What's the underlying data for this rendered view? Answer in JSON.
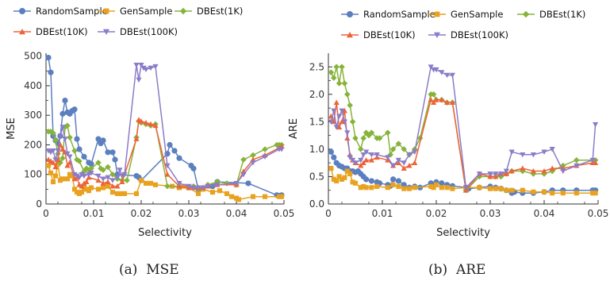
{
  "series_styles": [
    {
      "name": "RandomSample",
      "color": "#5b7fbf",
      "marker": "circle"
    },
    {
      "name": "GenSample",
      "color": "#e8a21f",
      "marker": "square"
    },
    {
      "name": "DBEst(1K)",
      "color": "#86b33a",
      "marker": "diamond"
    },
    {
      "name": "DBEst(10K)",
      "color": "#ec6439",
      "marker": "triangle-up"
    },
    {
      "name": "DBEst(100K)",
      "color": "#8b7cc8",
      "marker": "triangle-down"
    }
  ],
  "chart_data": [
    {
      "type": "line",
      "caption": "(a)  MSE",
      "xlabel": "Selectivity",
      "ylabel": "MSE",
      "xlim": [
        0,
        0.05
      ],
      "ylim": [
        0,
        510
      ],
      "xticks": [
        "0.00",
        "0.01",
        "0.02",
        "0.03",
        "0.04",
        "0.05"
      ],
      "xtick_values": [
        0,
        0.01,
        0.02,
        0.03,
        0.04,
        0.05
      ],
      "yticks": [
        "0",
        "100",
        "200",
        "300",
        "400",
        "500"
      ],
      "ytick_values": [
        0,
        100,
        200,
        300,
        400,
        500
      ],
      "legend_position": "top",
      "series": [
        {
          "name": "RandomSample",
          "x": [
            0.0005,
            0.001,
            0.0015,
            0.002,
            0.0025,
            0.003,
            0.0035,
            0.004,
            0.0045,
            0.005,
            0.0055,
            0.006,
            0.0065,
            0.007,
            0.008,
            0.009,
            0.0095,
            0.011,
            0.0115,
            0.012,
            0.013,
            0.014,
            0.0145,
            0.015,
            0.019,
            0.0195,
            0.02,
            0.0255,
            0.026,
            0.027,
            0.028,
            0.0305,
            0.031,
            0.032,
            0.035,
            0.036,
            0.0425,
            0.0485,
            0.049,
            0.0495
          ],
          "y": [
            495,
            445,
            230,
            215,
            205,
            230,
            305,
            350,
            310,
            305,
            315,
            320,
            220,
            185,
            160,
            140,
            135,
            220,
            205,
            215,
            175,
            175,
            150,
            100,
            95,
            90,
            80,
            170,
            200,
            180,
            155,
            130,
            120,
            50,
            60,
            75,
            70,
            30,
            28,
            30
          ]
        },
        {
          "name": "GenSample",
          "x": [
            0.0005,
            0.001,
            0.0015,
            0.002,
            0.0025,
            0.003,
            0.0035,
            0.0045,
            0.005,
            0.0055,
            0.006,
            0.0065,
            0.007,
            0.0075,
            0.008,
            0.0085,
            0.009,
            0.0095,
            0.011,
            0.012,
            0.013,
            0.014,
            0.015,
            0.016,
            0.0165,
            0.019,
            0.02,
            0.021,
            0.022,
            0.023,
            0.0265,
            0.028,
            0.029,
            0.03,
            0.032,
            0.033,
            0.035,
            0.0365,
            0.038,
            0.039,
            0.04,
            0.0405,
            0.0435,
            0.046,
            0.049,
            0.0495
          ],
          "y": [
            130,
            105,
            75,
            95,
            135,
            80,
            85,
            85,
            100,
            95,
            50,
            40,
            35,
            40,
            55,
            50,
            45,
            55,
            50,
            55,
            60,
            40,
            35,
            35,
            35,
            35,
            80,
            70,
            70,
            65,
            60,
            55,
            60,
            55,
            35,
            50,
            40,
            45,
            35,
            25,
            20,
            15,
            25,
            25,
            25,
            25
          ]
        },
        {
          "name": "DBEst(1K)",
          "x": [
            0.0005,
            0.001,
            0.0015,
            0.002,
            0.0025,
            0.003,
            0.0035,
            0.004,
            0.0045,
            0.005,
            0.006,
            0.0065,
            0.007,
            0.008,
            0.0085,
            0.009,
            0.0095,
            0.011,
            0.0115,
            0.012,
            0.013,
            0.014,
            0.015,
            0.016,
            0.017,
            0.019,
            0.0195,
            0.02,
            0.021,
            0.022,
            0.023,
            0.0255,
            0.028,
            0.03,
            0.031,
            0.032,
            0.033,
            0.034,
            0.036,
            0.038,
            0.04,
            0.0415,
            0.0435,
            0.046,
            0.0485,
            0.049,
            0.0495
          ],
          "y": [
            245,
            245,
            240,
            215,
            170,
            140,
            155,
            260,
            265,
            225,
            180,
            150,
            145,
            110,
            120,
            115,
            120,
            140,
            120,
            115,
            125,
            100,
            85,
            80,
            80,
            225,
            280,
            275,
            270,
            265,
            270,
            60,
            60,
            55,
            60,
            50,
            55,
            65,
            75,
            70,
            65,
            150,
            165,
            185,
            200,
            200,
            200
          ]
        },
        {
          "name": "DBEst(10K)",
          "x": [
            0.0005,
            0.001,
            0.0015,
            0.002,
            0.0025,
            0.003,
            0.0035,
            0.004,
            0.0045,
            0.005,
            0.006,
            0.0065,
            0.007,
            0.0075,
            0.008,
            0.0085,
            0.009,
            0.011,
            0.012,
            0.013,
            0.014,
            0.015,
            0.016,
            0.019,
            0.0195,
            0.02,
            0.021,
            0.022,
            0.023,
            0.0255,
            0.028,
            0.03,
            0.031,
            0.032,
            0.033,
            0.034,
            0.036,
            0.04,
            0.0415,
            0.0435,
            0.046,
            0.049,
            0.0495
          ],
          "y": [
            150,
            145,
            140,
            125,
            150,
            200,
            185,
            175,
            130,
            140,
            85,
            90,
            65,
            60,
            70,
            75,
            90,
            80,
            70,
            75,
            60,
            60,
            75,
            220,
            285,
            280,
            275,
            270,
            265,
            100,
            60,
            55,
            55,
            55,
            55,
            60,
            65,
            65,
            110,
            150,
            165,
            190,
            195
          ]
        },
        {
          "name": "DBEst(100K)",
          "x": [
            0.0005,
            0.001,
            0.0015,
            0.002,
            0.0025,
            0.003,
            0.0035,
            0.004,
            0.0045,
            0.005,
            0.006,
            0.0065,
            0.007,
            0.0075,
            0.008,
            0.009,
            0.0095,
            0.011,
            0.012,
            0.013,
            0.014,
            0.015,
            0.0155,
            0.016,
            0.0165,
            0.019,
            0.0195,
            0.02,
            0.0205,
            0.021,
            0.022,
            0.023,
            0.0255,
            0.028,
            0.03,
            0.031,
            0.032,
            0.033,
            0.034,
            0.036,
            0.04,
            0.0415,
            0.0435,
            0.046,
            0.049,
            0.0495
          ],
          "y": [
            180,
            175,
            180,
            150,
            180,
            230,
            260,
            220,
            170,
            160,
            100,
            95,
            90,
            100,
            95,
            100,
            105,
            95,
            85,
            90,
            80,
            90,
            115,
            95,
            100,
            470,
            420,
            470,
            460,
            455,
            460,
            465,
            130,
            70,
            60,
            55,
            55,
            55,
            60,
            65,
            70,
            100,
            140,
            160,
            185,
            185
          ]
        }
      ]
    },
    {
      "type": "line",
      "caption": "(b)  ARE",
      "xlabel": "Selectivity",
      "ylabel": "ARE",
      "xlim": [
        0,
        0.05
      ],
      "ylim": [
        0,
        2.75
      ],
      "xticks": [
        "0.00",
        "0.01",
        "0.02",
        "0.03",
        "0.04",
        "0.05"
      ],
      "xtick_values": [
        0,
        0.01,
        0.02,
        0.03,
        0.04,
        0.05
      ],
      "yticks": [
        "0.0",
        "0.5",
        "1.0",
        "1.5",
        "2.0",
        "2.5"
      ],
      "ytick_values": [
        0,
        0.5,
        1.0,
        1.5,
        2.0,
        2.5
      ],
      "legend_position": "top",
      "series": [
        {
          "name": "RandomSample",
          "x": [
            0.0005,
            0.001,
            0.0015,
            0.002,
            0.0025,
            0.003,
            0.0035,
            0.004,
            0.0045,
            0.005,
            0.0055,
            0.006,
            0.0065,
            0.007,
            0.008,
            0.009,
            0.0095,
            0.011,
            0.0115,
            0.012,
            0.013,
            0.014,
            0.015,
            0.016,
            0.017,
            0.019,
            0.0195,
            0.02,
            0.021,
            0.022,
            0.023,
            0.0255,
            0.026,
            0.028,
            0.03,
            0.031,
            0.032,
            0.033,
            0.034,
            0.0345,
            0.036,
            0.038,
            0.04,
            0.0415,
            0.0435,
            0.046,
            0.049,
            0.0495
          ],
          "y": [
            0.95,
            0.85,
            0.75,
            0.7,
            0.68,
            0.65,
            0.65,
            0.6,
            0.6,
            0.58,
            0.6,
            0.55,
            0.5,
            0.45,
            0.42,
            0.4,
            0.38,
            0.35,
            0.33,
            0.45,
            0.42,
            0.35,
            0.3,
            0.32,
            0.3,
            0.38,
            0.35,
            0.4,
            0.38,
            0.35,
            0.33,
            0.3,
            0.28,
            0.3,
            0.32,
            0.3,
            0.28,
            0.25,
            0.2,
            0.22,
            0.2,
            0.2,
            0.22,
            0.25,
            0.25,
            0.25,
            0.25,
            0.25
          ]
        },
        {
          "name": "GenSample",
          "x": [
            0.0005,
            0.001,
            0.0015,
            0.002,
            0.0025,
            0.003,
            0.0035,
            0.004,
            0.0045,
            0.005,
            0.006,
            0.0065,
            0.007,
            0.008,
            0.009,
            0.011,
            0.012,
            0.013,
            0.014,
            0.015,
            0.016,
            0.019,
            0.0195,
            0.02,
            0.021,
            0.022,
            0.023,
            0.0255,
            0.028,
            0.03,
            0.031,
            0.032,
            0.033,
            0.034,
            0.036,
            0.038,
            0.04,
            0.0415,
            0.0435,
            0.046,
            0.049,
            0.0495
          ],
          "y": [
            0.65,
            0.45,
            0.42,
            0.5,
            0.45,
            0.48,
            0.6,
            0.55,
            0.4,
            0.38,
            0.3,
            0.32,
            0.3,
            0.3,
            0.32,
            0.3,
            0.35,
            0.32,
            0.28,
            0.28,
            0.3,
            0.32,
            0.3,
            0.35,
            0.3,
            0.3,
            0.28,
            0.3,
            0.3,
            0.28,
            0.28,
            0.28,
            0.25,
            0.25,
            0.25,
            0.22,
            0.22,
            0.2,
            0.2,
            0.2,
            0.2,
            0.2
          ]
        },
        {
          "name": "DBEst(1K)",
          "x": [
            0.0005,
            0.001,
            0.0015,
            0.002,
            0.0025,
            0.003,
            0.0035,
            0.004,
            0.0045,
            0.005,
            0.006,
            0.0065,
            0.007,
            0.0075,
            0.008,
            0.009,
            0.0095,
            0.011,
            0.0115,
            0.012,
            0.013,
            0.014,
            0.015,
            0.016,
            0.017,
            0.019,
            0.0195,
            0.02,
            0.021,
            0.022,
            0.023,
            0.0255,
            0.028,
            0.03,
            0.031,
            0.032,
            0.033,
            0.034,
            0.036,
            0.038,
            0.04,
            0.0415,
            0.0435,
            0.046,
            0.049,
            0.0495
          ],
          "y": [
            2.4,
            2.3,
            2.5,
            2.2,
            2.5,
            2.2,
            2.0,
            1.8,
            1.5,
            1.2,
            1.0,
            1.2,
            1.3,
            1.25,
            1.3,
            1.2,
            1.2,
            1.3,
            0.9,
            1.0,
            1.1,
            1.0,
            0.9,
            1.0,
            1.2,
            2.0,
            2.0,
            1.9,
            1.9,
            1.85,
            1.85,
            0.25,
            0.5,
            0.5,
            0.5,
            0.5,
            0.55,
            0.6,
            0.6,
            0.55,
            0.55,
            0.6,
            0.7,
            0.8,
            0.8,
            0.8
          ]
        },
        {
          "name": "DBEst(10K)",
          "x": [
            0.0005,
            0.001,
            0.0015,
            0.002,
            0.0025,
            0.003,
            0.0035,
            0.004,
            0.0045,
            0.005,
            0.006,
            0.0065,
            0.007,
            0.008,
            0.009,
            0.011,
            0.012,
            0.013,
            0.014,
            0.015,
            0.016,
            0.019,
            0.0195,
            0.02,
            0.021,
            0.022,
            0.023,
            0.0255,
            0.028,
            0.03,
            0.031,
            0.032,
            0.033,
            0.034,
            0.036,
            0.038,
            0.04,
            0.0415,
            0.0435,
            0.046,
            0.049,
            0.0495
          ],
          "y": [
            1.6,
            1.5,
            1.85,
            1.4,
            1.5,
            1.7,
            1.2,
            0.9,
            0.8,
            0.75,
            0.7,
            0.75,
            0.8,
            0.8,
            0.85,
            0.8,
            0.7,
            0.75,
            0.65,
            0.7,
            0.75,
            1.9,
            1.85,
            1.9,
            1.9,
            1.85,
            1.85,
            0.25,
            0.55,
            0.5,
            0.5,
            0.55,
            0.55,
            0.6,
            0.65,
            0.6,
            0.6,
            0.65,
            0.65,
            0.7,
            0.75,
            0.75
          ]
        },
        {
          "name": "DBEst(100K)",
          "x": [
            0.0005,
            0.001,
            0.0015,
            0.002,
            0.0025,
            0.003,
            0.0035,
            0.004,
            0.0045,
            0.005,
            0.006,
            0.0065,
            0.007,
            0.008,
            0.009,
            0.011,
            0.012,
            0.013,
            0.014,
            0.015,
            0.016,
            0.019,
            0.0195,
            0.02,
            0.021,
            0.022,
            0.023,
            0.0255,
            0.028,
            0.03,
            0.031,
            0.032,
            0.033,
            0.034,
            0.036,
            0.038,
            0.04,
            0.0415,
            0.0435,
            0.046,
            0.049,
            0.0495
          ],
          "y": [
            1.5,
            1.7,
            1.4,
            1.6,
            1.7,
            1.5,
            1.3,
            0.85,
            0.8,
            0.75,
            0.8,
            0.9,
            0.95,
            0.9,
            0.9,
            0.85,
            0.7,
            0.8,
            0.75,
            0.9,
            0.95,
            2.5,
            2.45,
            2.45,
            2.4,
            2.35,
            2.35,
            0.3,
            0.55,
            0.55,
            0.55,
            0.55,
            0.6,
            0.95,
            0.9,
            0.9,
            0.95,
            1.0,
            0.6,
            0.7,
            0.8,
            1.45
          ]
        }
      ]
    }
  ]
}
